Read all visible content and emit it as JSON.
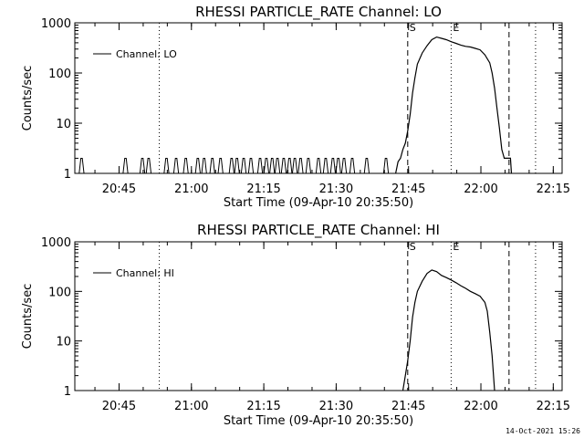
{
  "footer": {
    "timestamp": "14-Oct-2021 15:26"
  },
  "chart_data": [
    {
      "type": "line",
      "title": "RHESSI PARTICLE_RATE Channel: LO",
      "xlabel": "Start Time (09-Apr-10 20:35:50)",
      "ylabel": "Counts/sec",
      "y_scale": "log",
      "ylim": [
        1,
        1000
      ],
      "xlim_minutes": [
        0,
        101
      ],
      "x_tick_minutes": [
        9.17,
        24.17,
        39.17,
        54.17,
        69.17,
        84.17,
        99.17
      ],
      "x_tick_labels": [
        "20:45",
        "21:00",
        "21:15",
        "21:30",
        "21:45",
        "22:00",
        "22:15"
      ],
      "y_tick_values": [
        1,
        10,
        100,
        1000
      ],
      "y_tick_labels": [
        "1",
        "10",
        "100",
        "1000"
      ],
      "legend": {
        "label": "Channel: LO",
        "position": "top-left"
      },
      "markers": [
        {
          "label": "S",
          "minute": 69.0,
          "style": "dashed"
        },
        {
          "label": "E",
          "minute": 78.0,
          "style": "dotted"
        },
        {
          "label": "",
          "minute": 90.0,
          "style": "dashed"
        },
        {
          "label": "",
          "minute": 95.5,
          "style": "dotted"
        },
        {
          "label": "",
          "minute": 17.5,
          "style": "dotted"
        }
      ],
      "spike_minutes": [
        1.4,
        10.5,
        14.0,
        15.3,
        19.0,
        21.0,
        23.0,
        25.5,
        26.8,
        28.5,
        30.2,
        32.5,
        33.6,
        35.0,
        36.5,
        38.4,
        39.7,
        40.9,
        42.0,
        43.3,
        44.5,
        45.6,
        46.8,
        48.4,
        50.5,
        52.0,
        53.5,
        54.6,
        55.8,
        57.5,
        60.5,
        64.5
      ],
      "spike_value": 2,
      "series": [
        {
          "name": "Channel: LO",
          "points": [
            [
              66.5,
              1
            ],
            [
              67.0,
              1.7
            ],
            [
              67.5,
              2
            ],
            [
              68.0,
              3
            ],
            [
              68.5,
              4
            ],
            [
              69.0,
              7
            ],
            [
              69.5,
              15
            ],
            [
              70.0,
              40
            ],
            [
              70.5,
              80
            ],
            [
              71.0,
              150
            ],
            [
              72.0,
              250
            ],
            [
              73.0,
              350
            ],
            [
              74.0,
              460
            ],
            [
              75.0,
              520
            ],
            [
              76.0,
              490
            ],
            [
              77.0,
              460
            ],
            [
              78.0,
              420
            ],
            [
              79.0,
              390
            ],
            [
              80.0,
              360
            ],
            [
              81.0,
              340
            ],
            [
              82.0,
              330
            ],
            [
              83.0,
              310
            ],
            [
              84.0,
              290
            ],
            [
              85.0,
              230
            ],
            [
              86.0,
              160
            ],
            [
              86.5,
              100
            ],
            [
              87.0,
              50
            ],
            [
              87.5,
              20
            ],
            [
              88.0,
              8
            ],
            [
              88.5,
              3
            ],
            [
              89.0,
              2
            ],
            [
              90.3,
              2
            ],
            [
              90.5,
              1
            ]
          ]
        }
      ]
    },
    {
      "type": "line",
      "title": "RHESSI PARTICLE_RATE Channel: HI",
      "xlabel": "Start Time (09-Apr-10 20:35:50)",
      "ylabel": "Counts/sec",
      "y_scale": "log",
      "ylim": [
        1,
        1000
      ],
      "xlim_minutes": [
        0,
        101
      ],
      "x_tick_minutes": [
        9.17,
        24.17,
        39.17,
        54.17,
        69.17,
        84.17,
        99.17
      ],
      "x_tick_labels": [
        "20:45",
        "21:00",
        "21:15",
        "21:30",
        "21:45",
        "22:00",
        "22:15"
      ],
      "y_tick_values": [
        1,
        10,
        100,
        1000
      ],
      "y_tick_labels": [
        "1",
        "10",
        "100",
        "1000"
      ],
      "legend": {
        "label": "Channel: HI",
        "position": "top-left"
      },
      "markers": [
        {
          "label": "S",
          "minute": 69.0,
          "style": "dashed"
        },
        {
          "label": "E",
          "minute": 78.0,
          "style": "dotted"
        },
        {
          "label": "",
          "minute": 90.0,
          "style": "dashed"
        },
        {
          "label": "",
          "minute": 95.5,
          "style": "dotted"
        },
        {
          "label": "",
          "minute": 17.5,
          "style": "dotted"
        }
      ],
      "spike_minutes": [],
      "spike_value": 2,
      "series": [
        {
          "name": "Channel: HI",
          "points": [
            [
              68.0,
              1
            ],
            [
              68.5,
              2
            ],
            [
              69.0,
              4
            ],
            [
              69.5,
              10
            ],
            [
              70.0,
              30
            ],
            [
              70.5,
              60
            ],
            [
              71.0,
              100
            ],
            [
              72.0,
              160
            ],
            [
              73.0,
              230
            ],
            [
              74.0,
              270
            ],
            [
              75.0,
              250
            ],
            [
              76.0,
              210
            ],
            [
              77.0,
              190
            ],
            [
              78.0,
              170
            ],
            [
              79.0,
              150
            ],
            [
              80.0,
              130
            ],
            [
              81.0,
              115
            ],
            [
              82.0,
              100
            ],
            [
              83.0,
              90
            ],
            [
              84.0,
              80
            ],
            [
              85.0,
              60
            ],
            [
              85.5,
              40
            ],
            [
              86.0,
              15
            ],
            [
              86.5,
              5
            ],
            [
              87.0,
              1
            ]
          ]
        }
      ]
    }
  ]
}
